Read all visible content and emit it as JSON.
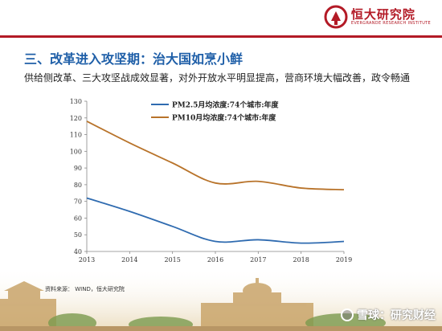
{
  "header": {
    "logo_cn": "恒大研究院",
    "logo_en": "EVERGRANDE RESEARCH INSTITUTE"
  },
  "title": "三、改革进入攻坚期：治大国如烹小鲜",
  "subtitle": "供给侧改革、三大攻坚战成效显著，对外开放水平明显提高，营商环境大幅改善，政令畅通",
  "source": "资料来源：  WIND，恒大研究院",
  "watermark": "雪球：研究财经",
  "colors": {
    "accent": "#b31a26",
    "title": "#1f5fa8",
    "pm25": "#2f6bb0",
    "pm10": "#b8732a"
  },
  "chart_data": {
    "type": "line",
    "x": [
      "2013",
      "2014",
      "2015",
      "2016",
      "2017",
      "2018",
      "2019"
    ],
    "xlim": [
      2013,
      2019
    ],
    "ylim": [
      40,
      130
    ],
    "yticks": [
      40,
      50,
      60,
      70,
      80,
      90,
      100,
      110,
      120,
      130
    ],
    "legend_position": "top-center",
    "grid": false,
    "series": [
      {
        "name": "PM2.5月均浓度:74个城市:年度",
        "color": "#2f6bb0",
        "values": [
          [
            2013,
            72
          ],
          [
            2014,
            64
          ],
          [
            2015,
            55
          ],
          [
            2016,
            46
          ],
          [
            2017,
            47
          ],
          [
            2018,
            45
          ],
          [
            2019,
            46
          ]
        ]
      },
      {
        "name": "PM10月均浓度:74个城市:年度",
        "color": "#b8732a",
        "values": [
          [
            2013,
            118
          ],
          [
            2014,
            105
          ],
          [
            2015,
            93
          ],
          [
            2016,
            81
          ],
          [
            2017,
            82
          ],
          [
            2018,
            78
          ],
          [
            2019,
            77
          ]
        ]
      }
    ]
  }
}
